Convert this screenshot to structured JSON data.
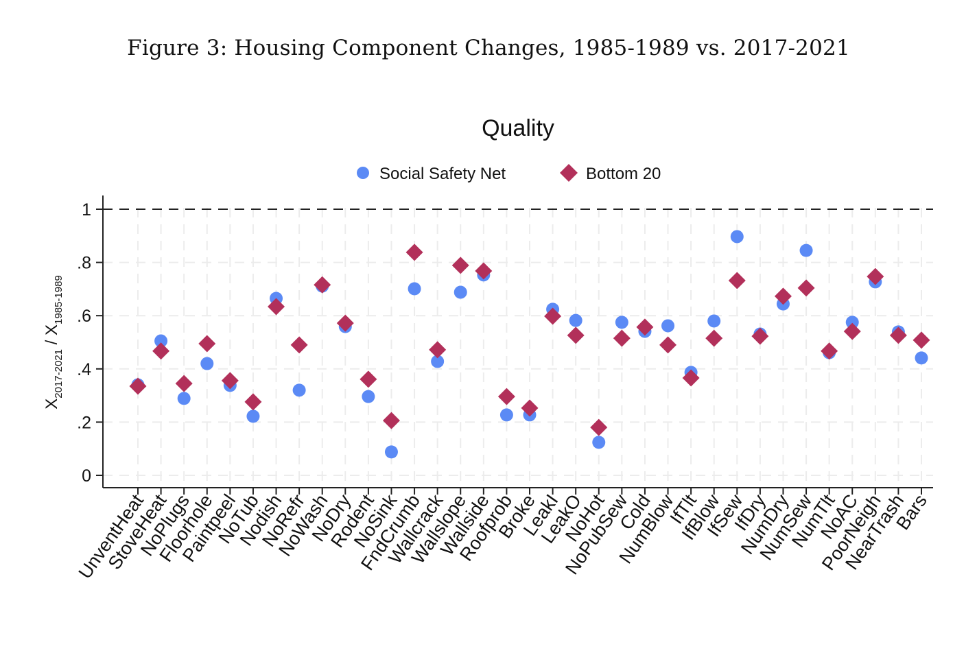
{
  "figure": {
    "caption": "Figure 3: Housing Component Changes, 1985-1989 vs. 2017-2021"
  },
  "chart_data": {
    "type": "scatter",
    "title": "Quality",
    "xlabel": "",
    "ylabel": {
      "main1": "X",
      "sub1": "2017-2021",
      "sep": " / ",
      "main2": "X",
      "sub2": "1985-1989"
    },
    "ylim": [
      0,
      1
    ],
    "yticks": [
      0,
      0.2,
      0.4,
      0.6,
      0.8,
      1
    ],
    "ytick_labels": [
      "0",
      ".2",
      ".4",
      ".6",
      ".8",
      "1"
    ],
    "reference_line": {
      "y": 1,
      "style": "dashed",
      "color": "#222222"
    },
    "grid": true,
    "legend": {
      "placement": "top-center"
    },
    "categories": [
      "UnventHeat",
      "StoveHeat",
      "NoPlugs",
      "Floorhole",
      "Paintpeel",
      "NoTub",
      "Nodish",
      "NoRefr",
      "NoWash",
      "NoDry",
      "Rodent",
      "NoSink",
      "FndCrumb",
      "Wallcrack",
      "Wallslope",
      "Wallside",
      "Roofprob",
      "Broke",
      "LeakI",
      "LeakO",
      "NoHot",
      "NoPubSew",
      "Cold",
      "NumBlow",
      "IfTlt",
      "IfBlow",
      "IfSew",
      "IfDry",
      "NumDry",
      "NumSew",
      "NumTlt",
      "NoAC",
      "PoorNeigh",
      "NearTrash",
      "Bars"
    ],
    "series": [
      {
        "name": "Social Safety Net",
        "marker": "circle",
        "color": "#5b8af5",
        "values": [
          0.34,
          0.505,
          0.289,
          0.42,
          0.338,
          0.222,
          0.665,
          0.32,
          0.711,
          0.559,
          0.296,
          0.088,
          0.701,
          0.428,
          0.688,
          0.753,
          0.227,
          0.227,
          0.624,
          0.582,
          0.124,
          0.575,
          0.541,
          0.562,
          0.387,
          0.58,
          0.897,
          0.531,
          0.644,
          0.845,
          0.461,
          0.575,
          0.727,
          0.539,
          0.441
        ]
      },
      {
        "name": "Bottom 20",
        "marker": "diamond",
        "color": "#b2305a",
        "values": [
          0.335,
          0.467,
          0.345,
          0.495,
          0.356,
          0.276,
          0.634,
          0.49,
          0.716,
          0.572,
          0.361,
          0.206,
          0.838,
          0.472,
          0.789,
          0.768,
          0.296,
          0.253,
          0.598,
          0.526,
          0.18,
          0.515,
          0.557,
          0.49,
          0.366,
          0.515,
          0.732,
          0.523,
          0.673,
          0.704,
          0.467,
          0.541,
          0.747,
          0.526,
          0.508
        ]
      }
    ]
  }
}
